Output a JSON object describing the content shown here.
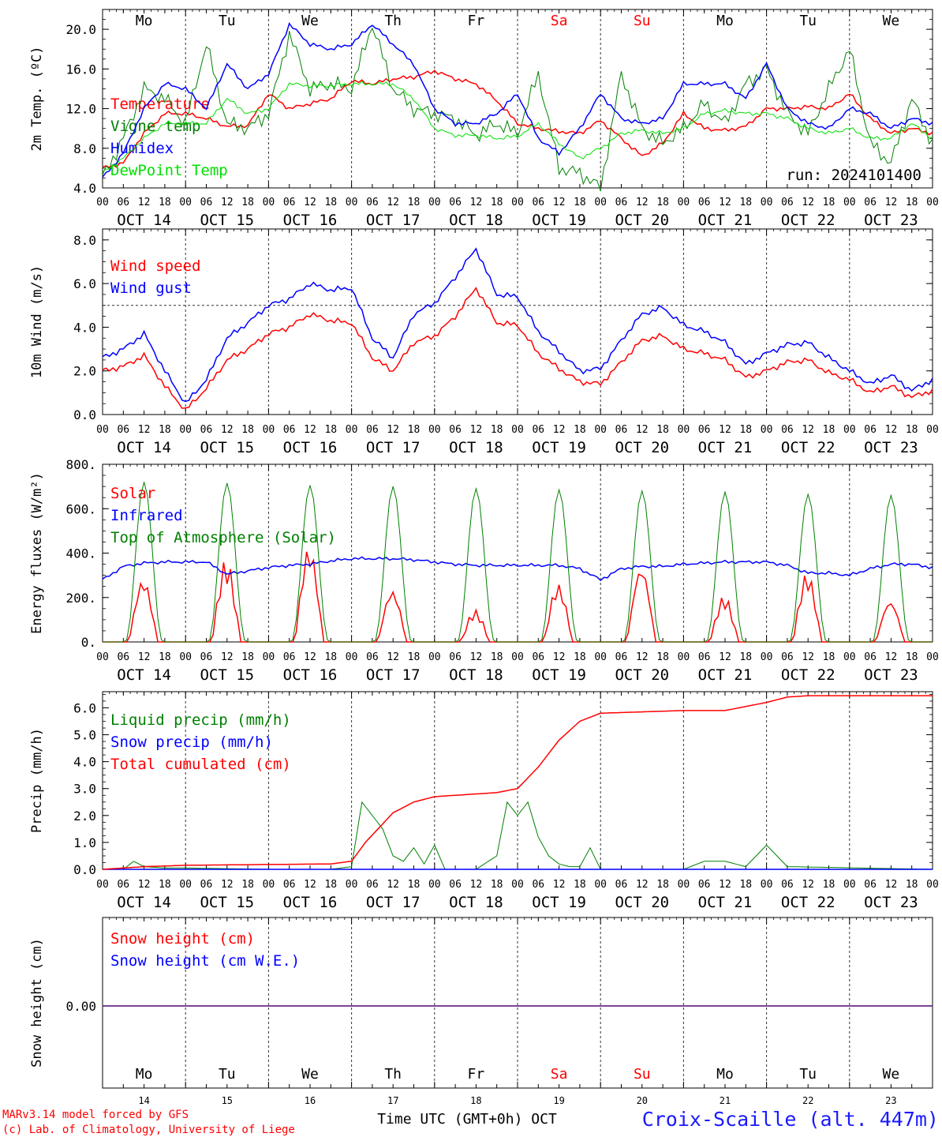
{
  "meta": {
    "run": "run: 2024101400",
    "credit_model": "MARv3.14 model forced by GFS",
    "credit_lab": "(c) Lab. of Climatology, University of Liege",
    "station": "Croix-Scaille (alt. 447m)",
    "xlabel": "Time UTC (GMT+0h) OCT"
  },
  "colors": {
    "red": "#ff0000",
    "green": "#008000",
    "blue": "#0000ff",
    "lime": "#00e000",
    "purple": "#6a2a8a",
    "title_blue": "#1a1aff"
  },
  "days": [
    {
      "abbr": "Mo",
      "date": "OCT 14",
      "num": "14",
      "weekend": false
    },
    {
      "abbr": "Tu",
      "date": "OCT 15",
      "num": "15",
      "weekend": false
    },
    {
      "abbr": "We",
      "date": "OCT 16",
      "num": "16",
      "weekend": false
    },
    {
      "abbr": "Th",
      "date": "OCT 17",
      "num": "17",
      "weekend": false
    },
    {
      "abbr": "Fr",
      "date": "OCT 18",
      "num": "18",
      "weekend": false
    },
    {
      "abbr": "Sa",
      "date": "OCT 19",
      "num": "19",
      "weekend": true
    },
    {
      "abbr": "Su",
      "date": "OCT 20",
      "num": "20",
      "weekend": true
    },
    {
      "abbr": "Mo",
      "date": "OCT 21",
      "num": "21",
      "weekend": false
    },
    {
      "abbr": "Tu",
      "date": "OCT 22",
      "num": "22",
      "weekend": false
    },
    {
      "abbr": "We",
      "date": "OCT 23",
      "num": "23",
      "weekend": false
    }
  ],
  "hour_ticks": [
    "00",
    "06",
    "12",
    "18"
  ],
  "chart_data": [
    {
      "type": "line",
      "ylabel": "2m Temp. (ºC)",
      "ylim": [
        4,
        22
      ],
      "yticks": [
        "4.0",
        "8.0",
        "12.0",
        "16.0",
        "20.0"
      ],
      "ytick_values": [
        4,
        8,
        12,
        16,
        20
      ],
      "x_hours": "0 to 240 (Oct 14 00 UTC to Oct 24 00 UTC)",
      "series": [
        {
          "name": "Temperature",
          "color": "red",
          "x": [
            0,
            6,
            12,
            18,
            24,
            30,
            36,
            42,
            48,
            54,
            60,
            66,
            72,
            78,
            84,
            90,
            96,
            102,
            108,
            114,
            120,
            126,
            132,
            138,
            144,
            150,
            156,
            162,
            168,
            174,
            180,
            186,
            192,
            198,
            204,
            210,
            216,
            222,
            228,
            234,
            240
          ],
          "values": [
            6.0,
            6.5,
            9.5,
            11.5,
            11.5,
            11.0,
            10.2,
            10.3,
            13.5,
            12.0,
            12.5,
            13.0,
            14.8,
            14.5,
            15.0,
            15.2,
            15.8,
            15.0,
            14.5,
            12.8,
            10.5,
            10.0,
            9.7,
            9.5,
            10.8,
            9.0,
            7.2,
            8.5,
            11.5,
            10.0,
            9.8,
            10.2,
            12.0,
            12.0,
            12.2,
            12.0,
            13.5,
            11.0,
            9.5,
            10.0,
            9.5
          ]
        },
        {
          "name": "Vigne temp",
          "color": "green",
          "x": [
            0,
            6,
            12,
            18,
            24,
            30,
            36,
            42,
            48,
            54,
            60,
            66,
            72,
            78,
            84,
            90,
            96,
            102,
            108,
            114,
            120,
            126,
            132,
            138,
            144,
            150,
            156,
            162,
            168,
            174,
            180,
            186,
            192,
            198,
            204,
            210,
            216,
            222,
            228,
            234,
            240
          ],
          "values": [
            5.0,
            9.0,
            14.0,
            13.0,
            10.5,
            18.5,
            10.5,
            10.0,
            11.5,
            19.5,
            14.0,
            14.5,
            14.0,
            20.5,
            14.0,
            12.0,
            11.5,
            11.0,
            9.3,
            10.5,
            9.5,
            15.5,
            6.0,
            5.5,
            4.0,
            15.5,
            10.0,
            8.5,
            10.0,
            12.5,
            10.5,
            14.5,
            16.0,
            11.5,
            9.5,
            14.0,
            18.0,
            8.5,
            6.5,
            13.0,
            8.5
          ]
        },
        {
          "name": "Humidex",
          "color": "blue",
          "x": [
            0,
            6,
            12,
            18,
            24,
            30,
            36,
            42,
            48,
            54,
            60,
            66,
            72,
            78,
            84,
            90,
            96,
            102,
            108,
            114,
            120,
            126,
            132,
            138,
            144,
            150,
            156,
            162,
            168,
            174,
            180,
            186,
            192,
            198,
            204,
            210,
            216,
            222,
            228,
            234,
            240
          ],
          "values": [
            5.0,
            7.5,
            12.0,
            14.5,
            14.0,
            12.0,
            16.5,
            14.0,
            15.5,
            20.5,
            18.5,
            18.0,
            18.5,
            20.5,
            18.5,
            16.5,
            12.0,
            10.5,
            10.5,
            11.5,
            13.5,
            9.0,
            7.5,
            10.0,
            13.5,
            11.0,
            10.5,
            11.0,
            14.5,
            14.5,
            14.5,
            13.0,
            16.5,
            12.0,
            10.5,
            10.0,
            12.0,
            11.5,
            10.0,
            11.0,
            10.5
          ]
        },
        {
          "name": "DewPoint Temp",
          "color": "lime",
          "x": [
            0,
            6,
            12,
            18,
            24,
            30,
            36,
            42,
            48,
            54,
            60,
            66,
            72,
            78,
            84,
            90,
            96,
            102,
            108,
            114,
            120,
            126,
            132,
            138,
            144,
            150,
            156,
            162,
            168,
            174,
            180,
            186,
            192,
            198,
            204,
            210,
            216,
            222,
            228,
            234,
            240
          ],
          "values": [
            5.5,
            7.0,
            9.0,
            10.5,
            10.5,
            10.5,
            13.0,
            11.5,
            12.0,
            14.5,
            14.3,
            14.3,
            14.5,
            14.5,
            14.5,
            13.0,
            10.0,
            9.3,
            9.3,
            9.0,
            9.2,
            10.5,
            8.5,
            7.0,
            8.0,
            9.5,
            9.8,
            9.5,
            10.0,
            11.5,
            11.8,
            11.5,
            11.5,
            11.0,
            10.0,
            9.5,
            10.0,
            9.0,
            9.0,
            10.5,
            9.0
          ]
        }
      ]
    },
    {
      "type": "line",
      "ylabel": "10m Wind (m/s)",
      "ylim": [
        0,
        8
      ],
      "yticks": [
        "0.0",
        "2.0",
        "4.0",
        "6.0",
        "8.0"
      ],
      "ytick_values": [
        0,
        2,
        4,
        6,
        8
      ],
      "reference_line": 5,
      "series": [
        {
          "name": "Wind speed",
          "color": "red",
          "x": [
            0,
            6,
            12,
            18,
            24,
            30,
            36,
            42,
            48,
            54,
            60,
            66,
            72,
            78,
            84,
            90,
            96,
            102,
            108,
            114,
            120,
            126,
            132,
            138,
            144,
            150,
            156,
            162,
            168,
            174,
            180,
            186,
            192,
            198,
            204,
            210,
            216,
            222,
            228,
            234,
            240
          ],
          "values": [
            2.0,
            2.2,
            2.7,
            1.3,
            0.2,
            1.2,
            2.5,
            3.0,
            3.7,
            4.0,
            4.6,
            4.3,
            4.2,
            2.6,
            2.0,
            3.3,
            3.6,
            4.5,
            5.8,
            4.2,
            4.1,
            2.8,
            2.1,
            1.5,
            1.4,
            2.4,
            3.4,
            3.6,
            3.0,
            2.8,
            2.5,
            1.7,
            2.0,
            2.4,
            2.5,
            1.9,
            1.6,
            1.0,
            1.3,
            0.8,
            1.1
          ]
        },
        {
          "name": "Wind gust",
          "color": "blue",
          "x": [
            0,
            6,
            12,
            18,
            24,
            30,
            36,
            42,
            48,
            54,
            60,
            66,
            72,
            78,
            84,
            90,
            96,
            102,
            108,
            114,
            120,
            126,
            132,
            138,
            144,
            150,
            156,
            162,
            168,
            174,
            180,
            186,
            192,
            198,
            204,
            210,
            216,
            222,
            228,
            234,
            240
          ],
          "values": [
            2.6,
            3.0,
            3.7,
            2.0,
            0.5,
            1.6,
            3.5,
            4.2,
            5.0,
            5.3,
            6.0,
            5.7,
            5.8,
            3.5,
            2.6,
            4.6,
            5.1,
            6.3,
            7.6,
            5.5,
            5.4,
            3.8,
            2.9,
            2.0,
            2.1,
            3.4,
            4.6,
            4.9,
            4.1,
            3.8,
            3.3,
            2.3,
            2.8,
            3.2,
            3.3,
            2.6,
            2.0,
            1.4,
            1.8,
            1.1,
            1.6
          ]
        }
      ]
    },
    {
      "type": "line",
      "ylabel": "Energy fluxes (W/m²)",
      "ylim": [
        0,
        800
      ],
      "yticks": [
        "0.",
        "200.",
        "400.",
        "600.",
        "800."
      ],
      "ytick_values": [
        0,
        200,
        400,
        600,
        800
      ],
      "series": [
        {
          "name": "Solar",
          "color": "red",
          "daily_peaks": [
            300,
            375,
            450,
            250,
            145,
            270,
            365,
            210,
            320,
            200
          ]
        },
        {
          "name": "Infrared",
          "color": "blue",
          "x": [
            0,
            6,
            12,
            18,
            24,
            30,
            36,
            42,
            48,
            54,
            60,
            66,
            72,
            78,
            84,
            90,
            96,
            102,
            108,
            114,
            120,
            126,
            132,
            138,
            144,
            150,
            156,
            162,
            168,
            174,
            180,
            186,
            192,
            198,
            204,
            210,
            216,
            222,
            228,
            234,
            240
          ],
          "values": [
            280,
            340,
            355,
            360,
            360,
            360,
            305,
            320,
            335,
            345,
            350,
            365,
            375,
            375,
            375,
            370,
            360,
            350,
            345,
            345,
            345,
            345,
            345,
            330,
            280,
            330,
            340,
            340,
            350,
            355,
            360,
            360,
            360,
            345,
            310,
            310,
            300,
            330,
            350,
            350,
            335
          ]
        },
        {
          "name": "Top of Atmosphere (Solar)",
          "color": "green",
          "daily_peaks": [
            720,
            715,
            705,
            700,
            690,
            685,
            680,
            675,
            665,
            660
          ]
        }
      ]
    },
    {
      "type": "line",
      "ylabel": "Precip (mm/h)",
      "ylim": [
        0,
        6.5
      ],
      "yticks": [
        "0.0",
        "1.0",
        "2.0",
        "3.0",
        "4.0",
        "5.0",
        "6.0"
      ],
      "ytick_values": [
        0,
        1,
        2,
        3,
        4,
        5,
        6
      ],
      "series": [
        {
          "name": "Liquid precip (mm/h)",
          "color": "green",
          "x": [
            0,
            6,
            9,
            12,
            18,
            24,
            48,
            66,
            72,
            75,
            78,
            81,
            84,
            87,
            90,
            93,
            96,
            99,
            102,
            108,
            114,
            117,
            120,
            123,
            126,
            129,
            132,
            135,
            138,
            141,
            144,
            156,
            168,
            174,
            180,
            186,
            192,
            198,
            240
          ],
          "values": [
            0,
            0,
            0.3,
            0.1,
            0.05,
            0.05,
            0,
            0,
            0.1,
            2.5,
            2.0,
            1.5,
            0.5,
            0.3,
            0.8,
            0.2,
            0.9,
            0,
            0,
            0,
            0.5,
            2.5,
            2.0,
            2.5,
            1.2,
            0.5,
            0.2,
            0.1,
            0.1,
            0.8,
            0,
            0,
            0,
            0.3,
            0.3,
            0.1,
            0.9,
            0.1,
            0
          ]
        },
        {
          "name": "Snow precip (mm/h)",
          "color": "blue",
          "x": [
            0,
            240
          ],
          "values": [
            0,
            0
          ]
        },
        {
          "name": "Total cumulated (cm)",
          "color": "red",
          "x": [
            0,
            12,
            24,
            48,
            66,
            72,
            76,
            84,
            90,
            96,
            108,
            114,
            120,
            126,
            132,
            138,
            144,
            168,
            180,
            192,
            198,
            204,
            240
          ],
          "values": [
            0,
            0.1,
            0.15,
            0.18,
            0.2,
            0.3,
            1.0,
            2.1,
            2.5,
            2.7,
            2.8,
            2.85,
            3.0,
            3.8,
            4.8,
            5.5,
            5.8,
            5.9,
            5.9,
            6.2,
            6.4,
            6.45,
            6.45
          ]
        }
      ]
    },
    {
      "type": "line",
      "ylabel": "Snow height (cm)",
      "yticks": [
        "0.00"
      ],
      "ytick_values": [
        0
      ],
      "series": [
        {
          "name": "Snow height (cm)",
          "color": "red",
          "x": [
            0,
            240
          ],
          "values": [
            0,
            0
          ]
        },
        {
          "name": "Snow height (cm W.E.)",
          "color": "blue",
          "x": [
            0,
            240
          ],
          "values": [
            0,
            0
          ]
        }
      ]
    }
  ]
}
